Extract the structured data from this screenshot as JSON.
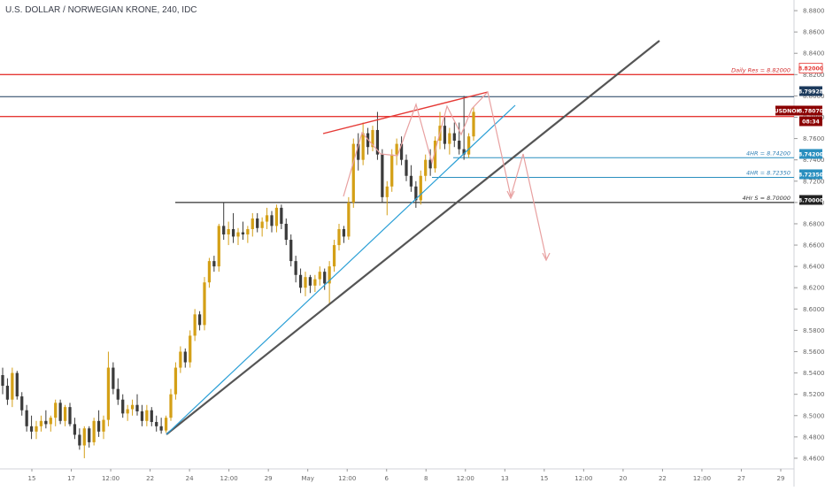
{
  "symbol_title": "U.S. DOLLAR / NORWEGIAN KRONE, 240, IDC",
  "colors": {
    "bull": "#d4a017",
    "bear": "#3b3b3b",
    "trend_dark": "#555555",
    "trend_blue": "#2a9fd6",
    "resistance": "#e53935",
    "label_text_red": "#d32f2f",
    "label_text_blue": "#2e7fb5",
    "level_blue": "#2a8fbf",
    "level_black": "#000000",
    "level_navy": "#1c3a5c",
    "projection": "#e8a0a0",
    "axis_text": "#666666"
  },
  "chart_data": {
    "type": "candlestick",
    "title": "U.S. DOLLAR / NORWEGIAN KRONE, 240, IDC",
    "ylim": [
      8.45,
      8.89
    ],
    "y_ticks": [
      "8.88000",
      "8.86000",
      "8.84000",
      "8.82000",
      "8.80000",
      "8.78000",
      "8.76000",
      "8.74000",
      "8.72000",
      "8.70000",
      "8.68000",
      "8.66000",
      "8.64000",
      "8.62000",
      "8.60000",
      "8.58000",
      "8.56000",
      "8.54000",
      "8.52000",
      "8.50000",
      "8.48000",
      "8.46000"
    ],
    "x_ticks": [
      "15",
      "17",
      "12:00",
      "22",
      "24",
      "12:00",
      "29",
      "May",
      "12:00",
      "6",
      "8",
      "12:00",
      "13",
      "15",
      "12:00",
      "20",
      "22",
      "12:00",
      "27",
      "29"
    ],
    "price_labels": [
      {
        "value": "8.82000",
        "style": "red-line"
      },
      {
        "value": "8.79928",
        "style": "navy"
      },
      {
        "value": "USDNOK",
        "style": "darkred"
      },
      {
        "value": "8.78070",
        "style": "darkred"
      },
      {
        "value": "08:34",
        "style": "darkred"
      },
      {
        "value": "8.74200",
        "style": "blue"
      },
      {
        "value": "8.72350",
        "style": "blue"
      },
      {
        "value": "8.70000",
        "style": "black"
      }
    ],
    "levels": [
      {
        "label": "Daily Res = 8.82000",
        "value": 8.82,
        "color": "red"
      },
      {
        "label": "",
        "value": 8.79928,
        "color": "navy"
      },
      {
        "label": "",
        "value": 8.7807,
        "color": "red"
      },
      {
        "label": "4HR = 8.74200",
        "value": 8.742,
        "color": "blue"
      },
      {
        "label": "4HR = 8.72350",
        "value": 8.7235,
        "color": "blue"
      },
      {
        "label": "4Hr S = 8.70000",
        "value": 8.7,
        "color": "black"
      }
    ],
    "candles": [
      {
        "o": 8.538,
        "h": 8.545,
        "l": 8.52,
        "c": 8.528
      },
      {
        "o": 8.528,
        "h": 8.535,
        "l": 8.51,
        "c": 8.515
      },
      {
        "o": 8.515,
        "h": 8.545,
        "l": 8.508,
        "c": 8.54
      },
      {
        "o": 8.54,
        "h": 8.542,
        "l": 8.515,
        "c": 8.518
      },
      {
        "o": 8.518,
        "h": 8.522,
        "l": 8.5,
        "c": 8.505
      },
      {
        "o": 8.505,
        "h": 8.51,
        "l": 8.485,
        "c": 8.49
      },
      {
        "o": 8.49,
        "h": 8.5,
        "l": 8.478,
        "c": 8.485
      },
      {
        "o": 8.485,
        "h": 8.495,
        "l": 8.478,
        "c": 8.49
      },
      {
        "o": 8.49,
        "h": 8.5,
        "l": 8.485,
        "c": 8.495
      },
      {
        "o": 8.495,
        "h": 8.505,
        "l": 8.488,
        "c": 8.492
      },
      {
        "o": 8.492,
        "h": 8.5,
        "l": 8.485,
        "c": 8.498
      },
      {
        "o": 8.498,
        "h": 8.515,
        "l": 8.49,
        "c": 8.512
      },
      {
        "o": 8.512,
        "h": 8.515,
        "l": 8.492,
        "c": 8.495
      },
      {
        "o": 8.495,
        "h": 8.51,
        "l": 8.49,
        "c": 8.508
      },
      {
        "o": 8.508,
        "h": 8.512,
        "l": 8.49,
        "c": 8.492
      },
      {
        "o": 8.492,
        "h": 8.498,
        "l": 8.478,
        "c": 8.482
      },
      {
        "o": 8.482,
        "h": 8.488,
        "l": 8.468,
        "c": 8.472
      },
      {
        "o": 8.472,
        "h": 8.49,
        "l": 8.46,
        "c": 8.488
      },
      {
        "o": 8.488,
        "h": 8.49,
        "l": 8.47,
        "c": 8.475
      },
      {
        "o": 8.475,
        "h": 8.498,
        "l": 8.472,
        "c": 8.495
      },
      {
        "o": 8.495,
        "h": 8.505,
        "l": 8.48,
        "c": 8.485
      },
      {
        "o": 8.485,
        "h": 8.5,
        "l": 8.478,
        "c": 8.496
      },
      {
        "o": 8.496,
        "h": 8.56,
        "l": 8.49,
        "c": 8.545
      },
      {
        "o": 8.545,
        "h": 8.55,
        "l": 8.52,
        "c": 8.525
      },
      {
        "o": 8.525,
        "h": 8.535,
        "l": 8.51,
        "c": 8.515
      },
      {
        "o": 8.515,
        "h": 8.52,
        "l": 8.498,
        "c": 8.502
      },
      {
        "o": 8.502,
        "h": 8.51,
        "l": 8.495,
        "c": 8.506
      },
      {
        "o": 8.506,
        "h": 8.515,
        "l": 8.5,
        "c": 8.51
      },
      {
        "o": 8.51,
        "h": 8.52,
        "l": 8.5,
        "c": 8.504
      },
      {
        "o": 8.504,
        "h": 8.51,
        "l": 8.49,
        "c": 8.495
      },
      {
        "o": 8.495,
        "h": 8.51,
        "l": 8.49,
        "c": 8.505
      },
      {
        "o": 8.505,
        "h": 8.508,
        "l": 8.49,
        "c": 8.494
      },
      {
        "o": 8.494,
        "h": 8.5,
        "l": 8.485,
        "c": 8.49
      },
      {
        "o": 8.49,
        "h": 8.498,
        "l": 8.483,
        "c": 8.486
      },
      {
        "o": 8.486,
        "h": 8.5,
        "l": 8.484,
        "c": 8.498
      },
      {
        "o": 8.498,
        "h": 8.525,
        "l": 8.495,
        "c": 8.52
      },
      {
        "o": 8.52,
        "h": 8.55,
        "l": 8.515,
        "c": 8.545
      },
      {
        "o": 8.545,
        "h": 8.565,
        "l": 8.54,
        "c": 8.56
      },
      {
        "o": 8.56,
        "h": 8.563,
        "l": 8.545,
        "c": 8.55
      },
      {
        "o": 8.55,
        "h": 8.58,
        "l": 8.545,
        "c": 8.575
      },
      {
        "o": 8.575,
        "h": 8.6,
        "l": 8.57,
        "c": 8.595
      },
      {
        "o": 8.595,
        "h": 8.598,
        "l": 8.58,
        "c": 8.585
      },
      {
        "o": 8.585,
        "h": 8.63,
        "l": 8.58,
        "c": 8.625
      },
      {
        "o": 8.625,
        "h": 8.648,
        "l": 8.62,
        "c": 8.645
      },
      {
        "o": 8.645,
        "h": 8.65,
        "l": 8.635,
        "c": 8.64
      },
      {
        "o": 8.64,
        "h": 8.68,
        "l": 8.635,
        "c": 8.678
      },
      {
        "o": 8.678,
        "h": 8.7,
        "l": 8.665,
        "c": 8.67
      },
      {
        "o": 8.67,
        "h": 8.682,
        "l": 8.66,
        "c": 8.675
      },
      {
        "o": 8.675,
        "h": 8.69,
        "l": 8.662,
        "c": 8.668
      },
      {
        "o": 8.668,
        "h": 8.676,
        "l": 8.66,
        "c": 8.672
      },
      {
        "o": 8.672,
        "h": 8.682,
        "l": 8.665,
        "c": 8.67
      },
      {
        "o": 8.67,
        "h": 8.678,
        "l": 8.662,
        "c": 8.675
      },
      {
        "o": 8.675,
        "h": 8.69,
        "l": 8.668,
        "c": 8.685
      },
      {
        "o": 8.685,
        "h": 8.69,
        "l": 8.672,
        "c": 8.676
      },
      {
        "o": 8.676,
        "h": 8.686,
        "l": 8.668,
        "c": 8.682
      },
      {
        "o": 8.682,
        "h": 8.695,
        "l": 8.675,
        "c": 8.688
      },
      {
        "o": 8.688,
        "h": 8.692,
        "l": 8.672,
        "c": 8.678
      },
      {
        "o": 8.678,
        "h": 8.698,
        "l": 8.672,
        "c": 8.695
      },
      {
        "o": 8.695,
        "h": 8.698,
        "l": 8.675,
        "c": 8.68
      },
      {
        "o": 8.68,
        "h": 8.685,
        "l": 8.66,
        "c": 8.665
      },
      {
        "o": 8.665,
        "h": 8.67,
        "l": 8.64,
        "c": 8.645
      },
      {
        "o": 8.645,
        "h": 8.65,
        "l": 8.625,
        "c": 8.632
      },
      {
        "o": 8.632,
        "h": 8.638,
        "l": 8.615,
        "c": 8.62
      },
      {
        "o": 8.62,
        "h": 8.635,
        "l": 8.612,
        "c": 8.63
      },
      {
        "o": 8.63,
        "h": 8.632,
        "l": 8.615,
        "c": 8.622
      },
      {
        "o": 8.622,
        "h": 8.632,
        "l": 8.616,
        "c": 8.628
      },
      {
        "o": 8.628,
        "h": 8.64,
        "l": 8.622,
        "c": 8.635
      },
      {
        "o": 8.635,
        "h": 8.638,
        "l": 8.618,
        "c": 8.624
      },
      {
        "o": 8.624,
        "h": 8.645,
        "l": 8.605,
        "c": 8.64
      },
      {
        "o": 8.64,
        "h": 8.665,
        "l": 8.635,
        "c": 8.66
      },
      {
        "o": 8.66,
        "h": 8.68,
        "l": 8.655,
        "c": 8.675
      },
      {
        "o": 8.675,
        "h": 8.678,
        "l": 8.662,
        "c": 8.668
      },
      {
        "o": 8.668,
        "h": 8.705,
        "l": 8.665,
        "c": 8.7
      },
      {
        "o": 8.7,
        "h": 8.76,
        "l": 8.695,
        "c": 8.755
      },
      {
        "o": 8.755,
        "h": 8.765,
        "l": 8.73,
        "c": 8.74
      },
      {
        "o": 8.74,
        "h": 8.775,
        "l": 8.735,
        "c": 8.765
      },
      {
        "o": 8.765,
        "h": 8.77,
        "l": 8.745,
        "c": 8.752
      },
      {
        "o": 8.752,
        "h": 8.772,
        "l": 8.748,
        "c": 8.768
      },
      {
        "o": 8.768,
        "h": 8.785,
        "l": 8.74,
        "c": 8.745
      },
      {
        "o": 8.745,
        "h": 8.75,
        "l": 8.7,
        "c": 8.705
      },
      {
        "o": 8.705,
        "h": 8.72,
        "l": 8.688,
        "c": 8.715
      },
      {
        "o": 8.715,
        "h": 8.75,
        "l": 8.71,
        "c": 8.745
      },
      {
        "o": 8.745,
        "h": 8.76,
        "l": 8.735,
        "c": 8.755
      },
      {
        "o": 8.755,
        "h": 8.762,
        "l": 8.735,
        "c": 8.74
      },
      {
        "o": 8.74,
        "h": 8.745,
        "l": 8.72,
        "c": 8.725
      },
      {
        "o": 8.725,
        "h": 8.735,
        "l": 8.71,
        "c": 8.715
      },
      {
        "o": 8.715,
        "h": 8.72,
        "l": 8.695,
        "c": 8.702
      },
      {
        "o": 8.702,
        "h": 8.73,
        "l": 8.698,
        "c": 8.725
      },
      {
        "o": 8.725,
        "h": 8.745,
        "l": 8.72,
        "c": 8.74
      },
      {
        "o": 8.74,
        "h": 8.75,
        "l": 8.725,
        "c": 8.732
      },
      {
        "o": 8.732,
        "h": 8.762,
        "l": 8.728,
        "c": 8.758
      },
      {
        "o": 8.758,
        "h": 8.785,
        "l": 8.75,
        "c": 8.772
      },
      {
        "o": 8.772,
        "h": 8.78,
        "l": 8.75,
        "c": 8.755
      },
      {
        "o": 8.755,
        "h": 8.77,
        "l": 8.745,
        "c": 8.765
      },
      {
        "o": 8.765,
        "h": 8.775,
        "l": 8.752,
        "c": 8.758
      },
      {
        "o": 8.758,
        "h": 8.775,
        "l": 8.745,
        "c": 8.75
      },
      {
        "o": 8.75,
        "h": 8.8,
        "l": 8.74,
        "c": 8.745
      },
      {
        "o": 8.745,
        "h": 8.765,
        "l": 8.742,
        "c": 8.762
      },
      {
        "o": 8.762,
        "h": 8.79,
        "l": 8.758,
        "c": 8.785
      }
    ]
  }
}
